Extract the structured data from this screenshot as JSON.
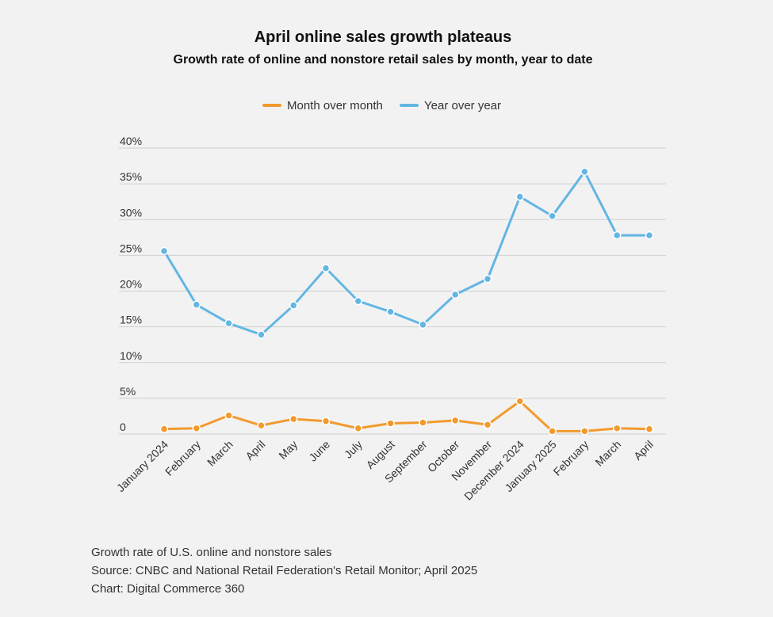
{
  "chart_data": {
    "type": "line",
    "title": "April online sales growth plateaus",
    "subtitle": "Growth rate of online and nonstore retail sales by month, year to date",
    "categories": [
      "January 2024",
      "February",
      "March",
      "April",
      "May",
      "June",
      "July",
      "August",
      "September",
      "October",
      "November",
      "December 2024",
      "January 2025",
      "February",
      "March",
      "April"
    ],
    "series": [
      {
        "name": "Month over month",
        "color": "#f29a2e",
        "values": [
          0.7,
          0.8,
          2.6,
          1.2,
          2.1,
          1.8,
          0.8,
          1.5,
          1.6,
          1.9,
          1.3,
          4.6,
          0.4,
          0.4,
          0.8,
          0.7
        ]
      },
      {
        "name": "Year over year",
        "color": "#63b6e3",
        "values": [
          25.6,
          18.1,
          15.5,
          13.9,
          18.0,
          23.2,
          18.6,
          17.1,
          15.3,
          19.5,
          21.7,
          33.2,
          30.5,
          36.7,
          27.8,
          27.8
        ]
      }
    ],
    "ylim": [
      0,
      40
    ],
    "yticks": [
      0,
      5,
      10,
      15,
      20,
      25,
      30,
      35,
      40
    ],
    "ytick_labels": [
      "0",
      "5%",
      "10%",
      "15%",
      "20%",
      "25%",
      "30%",
      "35%",
      "40%"
    ],
    "xlabel": "",
    "ylabel": "",
    "grid": true,
    "legend_position": "top-center"
  },
  "footer": {
    "line1": "Growth rate of U.S. online and nonstore sales",
    "line2": "Source: CNBC and National Retail Federation's Retail Monitor; April 2025",
    "line3": "Chart: Digital Commerce 360"
  },
  "colors": {
    "background": "#f2f2f2",
    "grid": "#cfcfcf"
  }
}
